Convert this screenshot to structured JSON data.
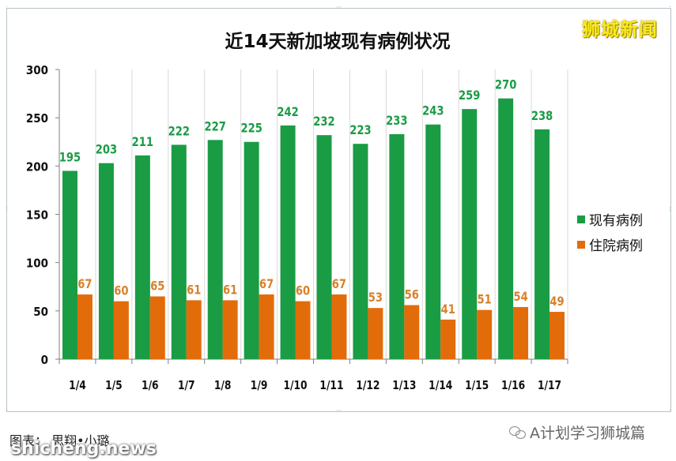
{
  "chart_data": {
    "type": "bar",
    "title": "近14天新加坡现有病例状况",
    "categories": [
      "1/4",
      "1/5",
      "1/6",
      "1/7",
      "1/8",
      "1/9",
      "1/10",
      "1/11",
      "1/12",
      "1/13",
      "1/14",
      "1/15",
      "1/16",
      "1/17"
    ],
    "series": [
      {
        "name": "现有病例",
        "color": "#1a9c45",
        "label_color": "#1a9c45",
        "values": [
          195,
          203,
          211,
          222,
          227,
          225,
          242,
          232,
          223,
          233,
          243,
          259,
          270,
          238
        ]
      },
      {
        "name": "住院病例",
        "color": "#e36c0a",
        "label_color": "#d8812b",
        "values": [
          67,
          60,
          65,
          61,
          61,
          67,
          60,
          67,
          53,
          56,
          41,
          51,
          54,
          49
        ]
      }
    ],
    "ylim": [
      0,
      300
    ],
    "yticks": [
      0,
      50,
      100,
      150,
      200,
      250,
      300
    ],
    "grid": "vertical",
    "legend_position": "right"
  },
  "brand_top_right": "狮城新闻",
  "credit": "图表： 思翔•小璐",
  "watermark_bottom_left": "shicheng.news",
  "watermark_bottom_right": "A计划学习狮城篇"
}
